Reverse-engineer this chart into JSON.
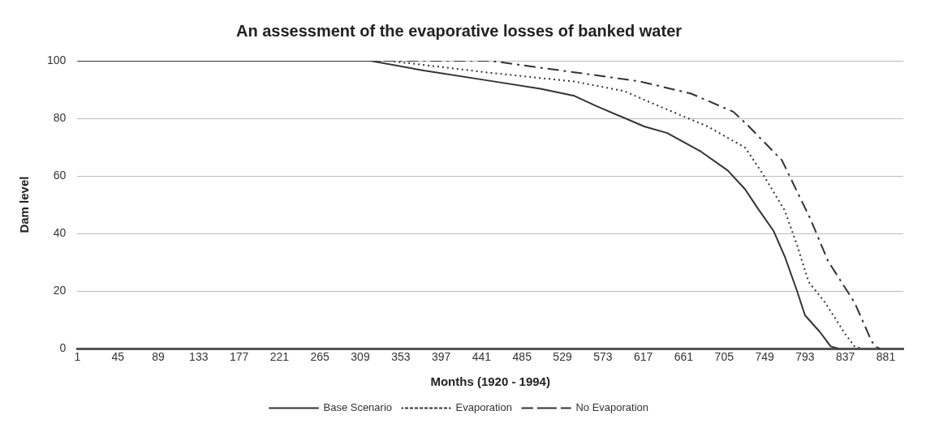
{
  "chart_data": {
    "type": "line",
    "title": "An assessment of the evaporative losses of banked water",
    "xlabel": "Months (1920 - 1994)",
    "ylabel": "Dam level",
    "xlim": [
      1,
      900
    ],
    "xticks": [
      1,
      45,
      89,
      133,
      177,
      221,
      265,
      309,
      353,
      397,
      441,
      485,
      529,
      573,
      617,
      661,
      705,
      749,
      793,
      837,
      881
    ],
    "ylim": [
      0,
      100
    ],
    "yticks": [
      0,
      20,
      40,
      60,
      80,
      100
    ],
    "grid": "y",
    "legend": "bottom",
    "marker": "none",
    "series": [
      {
        "name": "Base Scenario",
        "color": "#333333",
        "line_style": "solid",
        "x": [
          1,
          320,
          378,
          451,
          505,
          542,
          565,
          618,
          643,
          680,
          709,
          728,
          740,
          759,
          771,
          784,
          793,
          809,
          821,
          830
        ],
        "values": [
          100,
          100,
          96.6,
          93,
          90.3,
          87.8,
          84.4,
          77.2,
          74.9,
          68.4,
          61.9,
          55.3,
          49.5,
          40.8,
          32,
          20.4,
          11.6,
          5.9,
          0.8,
          0
        ]
      },
      {
        "name": "Evaporation",
        "color": "#333333",
        "line_style": "dotted",
        "x": [
          1,
          340,
          451,
          542,
          596,
          633,
          687,
          728,
          746,
          771,
          784,
          797,
          815,
          837,
          847,
          855
        ],
        "values": [
          100,
          100,
          95.8,
          92.8,
          89.5,
          84.4,
          77.2,
          69.8,
          61.2,
          48,
          36.3,
          23.2,
          16,
          5,
          0.8,
          0
        ]
      },
      {
        "name": "No Evaporation",
        "color": "#333333",
        "line_style": "dashed",
        "x": [
          1,
          450,
          542,
          614,
          669,
          715,
          730,
          768,
          799,
          818,
          847,
          865,
          869,
          875
        ],
        "values": [
          100,
          100,
          96,
          92.8,
          88.6,
          82.3,
          77.8,
          65.4,
          45,
          30.5,
          16,
          3,
          0.8,
          0
        ]
      }
    ]
  }
}
